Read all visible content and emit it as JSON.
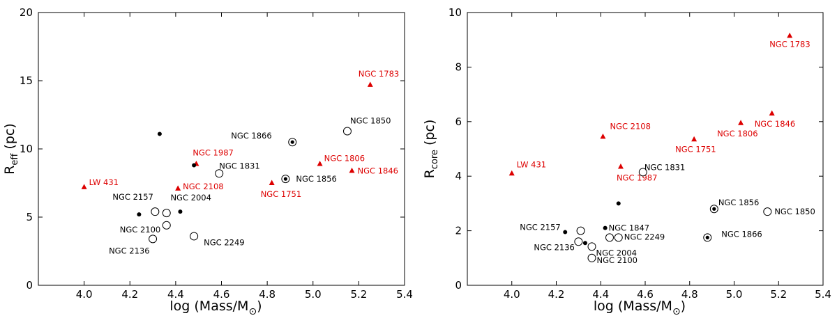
{
  "colors": {
    "open": "#000000",
    "young": "#dd0000"
  },
  "chart_data": [
    {
      "type": "scatter",
      "xlabel": "log (Mass/M",
      "xlabel_suffix": "⊙",
      "ylabel_main": "R",
      "ylabel_sub": "eff",
      "ylabel_unit": " (pc)",
      "xlim": [
        3.8,
        5.4
      ],
      "ylim": [
        0,
        20
      ],
      "xticks": [
        "4.0",
        "4.2",
        "4.4",
        "4.6",
        "4.8",
        "5.0",
        "5.2",
        "5.4"
      ],
      "yticks": [
        "0",
        "5",
        "10",
        "15",
        "20"
      ],
      "points": [
        {
          "x": 4.0,
          "y": 7.2,
          "marker": "triangle",
          "color": "young",
          "label": "LW 431"
        },
        {
          "x": 4.41,
          "y": 7.1,
          "marker": "triangle",
          "color": "young",
          "label": "NGC 2108"
        },
        {
          "x": 4.49,
          "y": 8.9,
          "marker": "triangle",
          "color": "young",
          "label": "NGC 1987"
        },
        {
          "x": 4.82,
          "y": 7.5,
          "marker": "triangle",
          "color": "young",
          "label": "NGC 1751"
        },
        {
          "x": 5.03,
          "y": 8.9,
          "marker": "triangle",
          "color": "young",
          "label": "NGC 1806"
        },
        {
          "x": 5.17,
          "y": 8.4,
          "marker": "triangle",
          "color": "young",
          "label": "NGC 1846"
        },
        {
          "x": 5.25,
          "y": 14.7,
          "marker": "triangle",
          "color": "young",
          "label": "NGC 1783"
        },
        {
          "x": 4.24,
          "y": 5.2,
          "marker": "dot",
          "color": "open",
          "label": "NGC 2157"
        },
        {
          "x": 4.33,
          "y": 11.1,
          "marker": "dot",
          "color": "open",
          "label": ""
        },
        {
          "x": 4.42,
          "y": 5.4,
          "marker": "dot",
          "color": "open",
          "label": "NGC 2004"
        },
        {
          "x": 4.48,
          "y": 8.8,
          "marker": "dot",
          "color": "open",
          "label": ""
        },
        {
          "x": 4.31,
          "y": 5.4,
          "marker": "circle",
          "color": "open",
          "label": ""
        },
        {
          "x": 4.36,
          "y": 5.3,
          "marker": "circle",
          "color": "open",
          "label": ""
        },
        {
          "x": 4.36,
          "y": 4.4,
          "marker": "circle",
          "color": "open",
          "label": "NGC 2100"
        },
        {
          "x": 4.3,
          "y": 3.4,
          "marker": "circle",
          "color": "open",
          "label": "NGC 2136"
        },
        {
          "x": 4.48,
          "y": 3.6,
          "marker": "circle",
          "color": "open",
          "label": "NGC 2249"
        },
        {
          "x": 4.59,
          "y": 8.2,
          "marker": "circle",
          "color": "open",
          "label": "NGC 1831"
        },
        {
          "x": 5.15,
          "y": 11.3,
          "marker": "circle",
          "color": "open",
          "label": "NGC 1850"
        },
        {
          "x": 4.91,
          "y": 10.5,
          "marker": "circledot",
          "color": "open",
          "label": "NGC 1866"
        },
        {
          "x": 4.88,
          "y": 7.8,
          "marker": "circledot",
          "color": "open",
          "label": "NGC 1856"
        }
      ]
    },
    {
      "type": "scatter",
      "xlabel": "log (Mass/M",
      "xlabel_suffix": "⊙",
      "ylabel_main": "R",
      "ylabel_sub": "core",
      "ylabel_unit": " (pc)",
      "xlim": [
        3.8,
        5.4
      ],
      "ylim": [
        0,
        10
      ],
      "xticks": [
        "4.0",
        "4.2",
        "4.4",
        "4.6",
        "4.8",
        "5.0",
        "5.2",
        "5.4"
      ],
      "yticks": [
        "0",
        "2",
        "4",
        "6",
        "8",
        "10"
      ],
      "points": [
        {
          "x": 4.0,
          "y": 4.1,
          "marker": "triangle",
          "color": "young",
          "label": "LW 431"
        },
        {
          "x": 4.41,
          "y": 5.45,
          "marker": "triangle",
          "color": "young",
          "label": "NGC 2108"
        },
        {
          "x": 4.49,
          "y": 4.35,
          "marker": "triangle",
          "color": "young",
          "label": "NGC 1987"
        },
        {
          "x": 4.82,
          "y": 5.35,
          "marker": "triangle",
          "color": "young",
          "label": "NGC 1751"
        },
        {
          "x": 5.03,
          "y": 5.95,
          "marker": "triangle",
          "color": "young",
          "label": "NGC 1806"
        },
        {
          "x": 5.17,
          "y": 6.3,
          "marker": "triangle",
          "color": "young",
          "label": "NGC 1846"
        },
        {
          "x": 5.25,
          "y": 9.15,
          "marker": "triangle",
          "color": "young",
          "label": "NGC 1783"
        },
        {
          "x": 4.24,
          "y": 1.95,
          "marker": "dot",
          "color": "open",
          "label": "NGC 2157"
        },
        {
          "x": 4.42,
          "y": 2.1,
          "marker": "dot",
          "color": "open",
          "label": "NGC 1847"
        },
        {
          "x": 4.33,
          "y": 1.55,
          "marker": "dot",
          "color": "open",
          "label": ""
        },
        {
          "x": 4.48,
          "y": 3.0,
          "marker": "dot",
          "color": "open",
          "label": ""
        },
        {
          "x": 4.31,
          "y": 2.0,
          "marker": "circle",
          "color": "open",
          "label": ""
        },
        {
          "x": 4.3,
          "y": 1.6,
          "marker": "circle",
          "color": "open",
          "label": "NGC 2136"
        },
        {
          "x": 4.44,
          "y": 1.75,
          "marker": "circle",
          "color": "open",
          "label": ""
        },
        {
          "x": 4.48,
          "y": 1.75,
          "marker": "circle",
          "color": "open",
          "label": "NGC 2249"
        },
        {
          "x": 4.36,
          "y": 1.42,
          "marker": "circle",
          "color": "open",
          "label": "NGC 2004"
        },
        {
          "x": 4.36,
          "y": 1.0,
          "marker": "circle",
          "color": "open",
          "label": "NGC 2100"
        },
        {
          "x": 4.59,
          "y": 4.15,
          "marker": "circle",
          "color": "open",
          "label": "NGC 1831"
        },
        {
          "x": 5.15,
          "y": 2.7,
          "marker": "circle",
          "color": "open",
          "label": "NGC 1850"
        },
        {
          "x": 4.91,
          "y": 2.8,
          "marker": "circledot",
          "color": "open",
          "label": "NGC 1856"
        },
        {
          "x": 4.88,
          "y": 1.75,
          "marker": "circledot",
          "color": "open",
          "label": "NGC 1866"
        }
      ]
    }
  ]
}
